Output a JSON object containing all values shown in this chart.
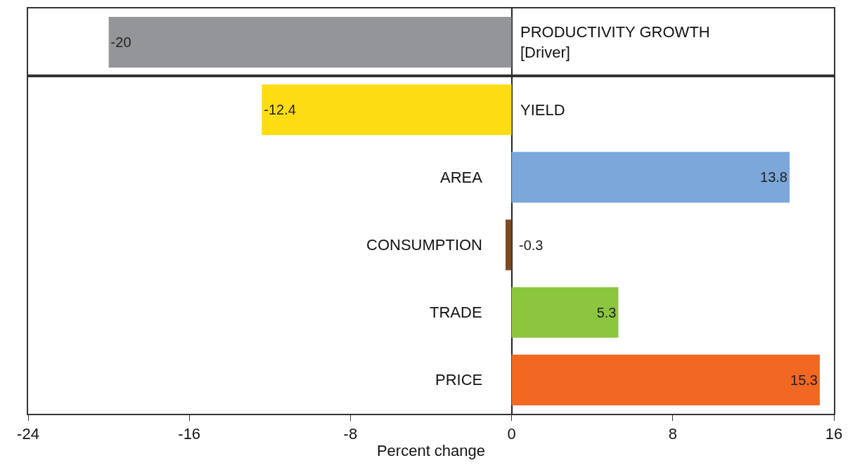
{
  "chart_data": [
    {
      "type": "bar",
      "orientation": "horizontal",
      "categories": [
        "PRODUCTIVITY GROWTH\n[Driver]"
      ],
      "values": [
        -20
      ],
      "colors": [
        "#939598"
      ],
      "data_labels": true,
      "xlim": [
        -24,
        16
      ],
      "tick_labels": false
    },
    {
      "type": "bar",
      "orientation": "horizontal",
      "categories": [
        "YIELD",
        "AREA",
        "CONSUMPTION",
        "TRADE",
        "PRICE"
      ],
      "values": [
        -12.4,
        13.8,
        -0.3,
        5.3,
        15.3
      ],
      "colors": [
        "#fcdc12",
        "#7ba7d9",
        "#7b4a23",
        "#8cc63f",
        "#f26722"
      ],
      "data_labels": true,
      "xlim": [
        -24,
        16
      ],
      "xticks": [
        -24,
        -16,
        -8,
        0,
        8,
        16
      ],
      "xlabel": "Percent change",
      "tick_labels": "x"
    }
  ]
}
